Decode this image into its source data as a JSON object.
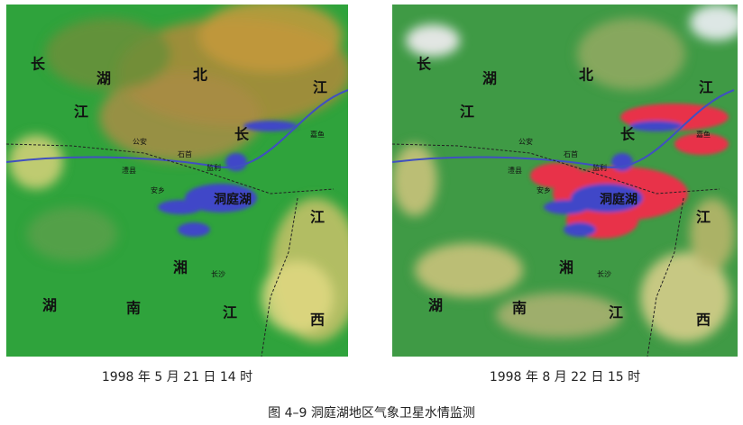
{
  "figure": {
    "panels": [
      {
        "labels": [
          "长",
          "湖",
          "北",
          "江",
          "江",
          "长",
          "嘉鱼",
          "公安",
          "石首",
          "监利",
          "澧县",
          "安乡",
          "洞庭湖",
          "江",
          "湘",
          "长沙",
          "湖",
          "南",
          "江",
          "西"
        ],
        "caption": "1998 年 5 月 21 日 14 时"
      },
      {
        "labels": [
          "长",
          "湖",
          "北",
          "江",
          "江",
          "长",
          "嘉鱼",
          "公安",
          "石首",
          "监利",
          "澧县",
          "安乡",
          "洞庭湖",
          "江",
          "湘",
          "长沙",
          "湖",
          "南",
          "江",
          "西"
        ],
        "caption": "1998 年 8 月 22 日 15 时"
      }
    ],
    "caption": "图 4–9  洞庭湖地区气象卫星水情监测"
  }
}
